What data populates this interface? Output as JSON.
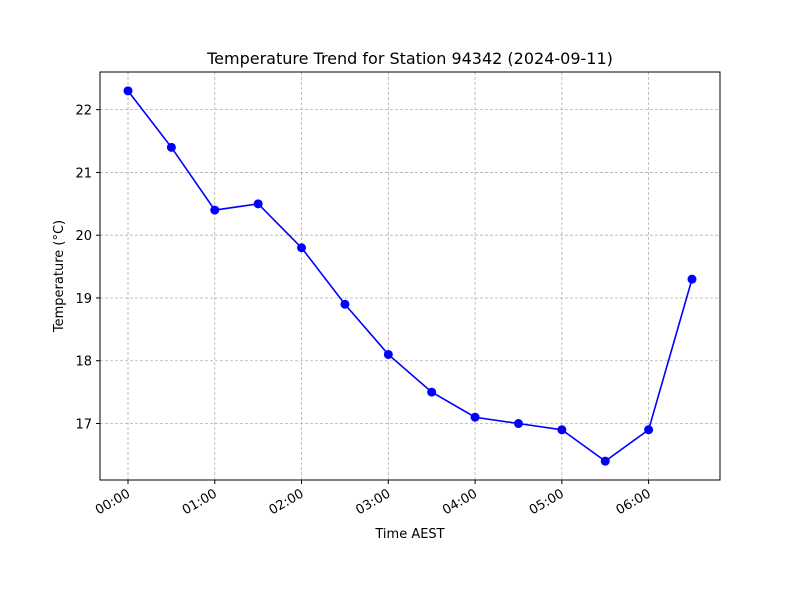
{
  "chart_data": {
    "type": "line",
    "title": "Temperature Trend for Station 94342 (2024-09-11)",
    "xlabel": "Time AEST",
    "ylabel": "Temperature (°C)",
    "x": [
      "00:00",
      "00:30",
      "01:00",
      "01:30",
      "02:00",
      "02:30",
      "03:00",
      "03:30",
      "04:00",
      "04:30",
      "05:00",
      "05:30",
      "06:00",
      "06:30"
    ],
    "series": [
      {
        "values": [
          22.3,
          21.4,
          20.4,
          20.5,
          19.8,
          18.9,
          18.1,
          17.5,
          17.1,
          17.0,
          16.9,
          16.4,
          16.9,
          19.3
        ],
        "color": "#0000ff",
        "marker": "circle"
      }
    ],
    "xticks": [
      "00:00",
      "01:00",
      "02:00",
      "03:00",
      "04:00",
      "05:00",
      "06:00"
    ],
    "yticks": [
      17,
      18,
      19,
      20,
      21,
      22
    ],
    "ylim": [
      16.1,
      22.6
    ],
    "grid": true
  }
}
